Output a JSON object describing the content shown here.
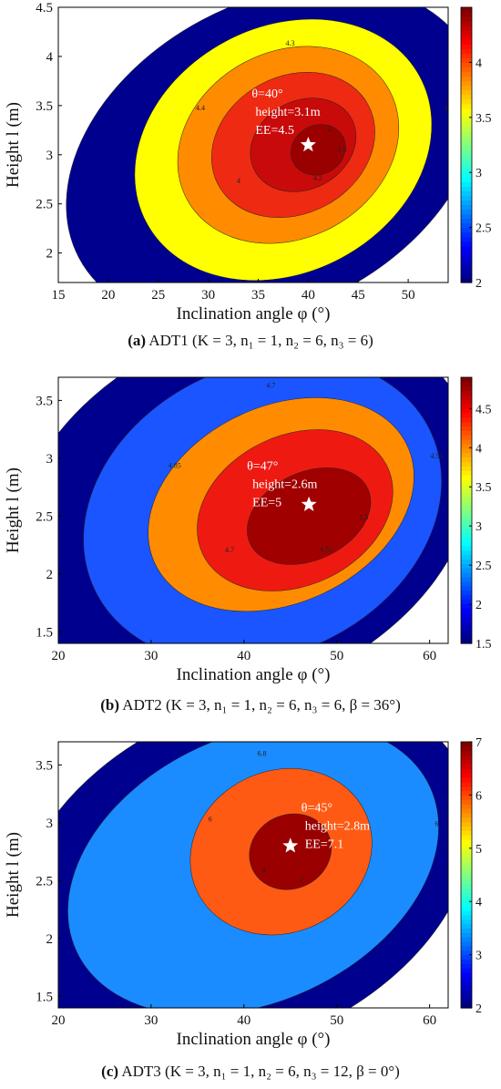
{
  "chart_data": [
    {
      "type": "heatmap",
      "panel_label": "(a)",
      "caption_rest": " ADT1 (K = 3, n₁ = 1, n₂ = 6, n₃ = 6)",
      "xlabel": "Inclination angle φ (°)",
      "ylabel": "Height l (m)",
      "xlim": [
        15,
        54
      ],
      "ylim": [
        1.7,
        4.5
      ],
      "xticks": [
        15,
        20,
        25,
        30,
        35,
        40,
        45,
        50
      ],
      "yticks": [
        2,
        2.5,
        3,
        3.5,
        4,
        4.5
      ],
      "colorbar": {
        "min": 2,
        "max": 4.5,
        "ticks": [
          2,
          2.5,
          3,
          3.5,
          4
        ]
      },
      "contour_levels": [
        2,
        3.6,
        4,
        4.2,
        4.3,
        4.4
      ],
      "contour_colors": [
        "#00008f",
        "#ffff00",
        "#ff8c00",
        "#ee2a12",
        "#c90a0a",
        "#9a0000"
      ],
      "optimum": {
        "x": 40,
        "y": 3.1,
        "angle_label": "θ=40°",
        "height_label": "height=3.1m",
        "ee_label": "EE=4.5"
      }
    },
    {
      "type": "heatmap",
      "panel_label": "(b)",
      "caption_rest": " ADT2 (K = 3, n₁ = 1, n₂ = 6, n₃ = 6, β = 36°)",
      "xlabel": "Inclination angle φ (°)",
      "ylabel": "Height l (m)",
      "xlim": [
        20,
        62
      ],
      "ylim": [
        1.4,
        3.7
      ],
      "xticks": [
        20,
        30,
        40,
        50,
        60
      ],
      "yticks": [
        1.5,
        2,
        2.5,
        3,
        3.5
      ],
      "colorbar": {
        "min": 1.5,
        "max": 4.9,
        "ticks": [
          1.5,
          2,
          2.5,
          3,
          3.5,
          4,
          4.5
        ]
      },
      "contour_levels": [
        1.5,
        4,
        4.55,
        4.7,
        4.85
      ],
      "contour_colors": [
        "#00008f",
        "#1a55ff",
        "#ff8c00",
        "#ee1a12",
        "#a00000"
      ],
      "optimum": {
        "x": 47,
        "y": 2.6,
        "angle_label": "θ=47°",
        "height_label": "height=2.6m",
        "ee_label": "EE=5"
      }
    },
    {
      "type": "heatmap",
      "panel_label": "(c)",
      "caption_rest": " ADT3 (K = 3, n₁ = 1, n₂ = 6, n₃ = 12, β = 0°)",
      "xlabel": "Inclination angle φ (°)",
      "ylabel": "Height l (m)",
      "xlim": [
        20,
        62
      ],
      "ylim": [
        1.4,
        3.7
      ],
      "xticks": [
        20,
        30,
        40,
        50,
        60
      ],
      "yticks": [
        1.5,
        2,
        2.5,
        3,
        3.5
      ],
      "colorbar": {
        "min": 2,
        "max": 7,
        "ticks": [
          2,
          3,
          4,
          5,
          6,
          7
        ]
      },
      "contour_levels": [
        2,
        4,
        6,
        6.8
      ],
      "contour_colors": [
        "#00008f",
        "#1a8cff",
        "#ff5a14",
        "#9a0000"
      ],
      "optimum": {
        "x": 45,
        "y": 2.8,
        "angle_label": "θ=45°",
        "height_label": "height=2.8m",
        "ee_label": "EE=7.1"
      }
    }
  ]
}
